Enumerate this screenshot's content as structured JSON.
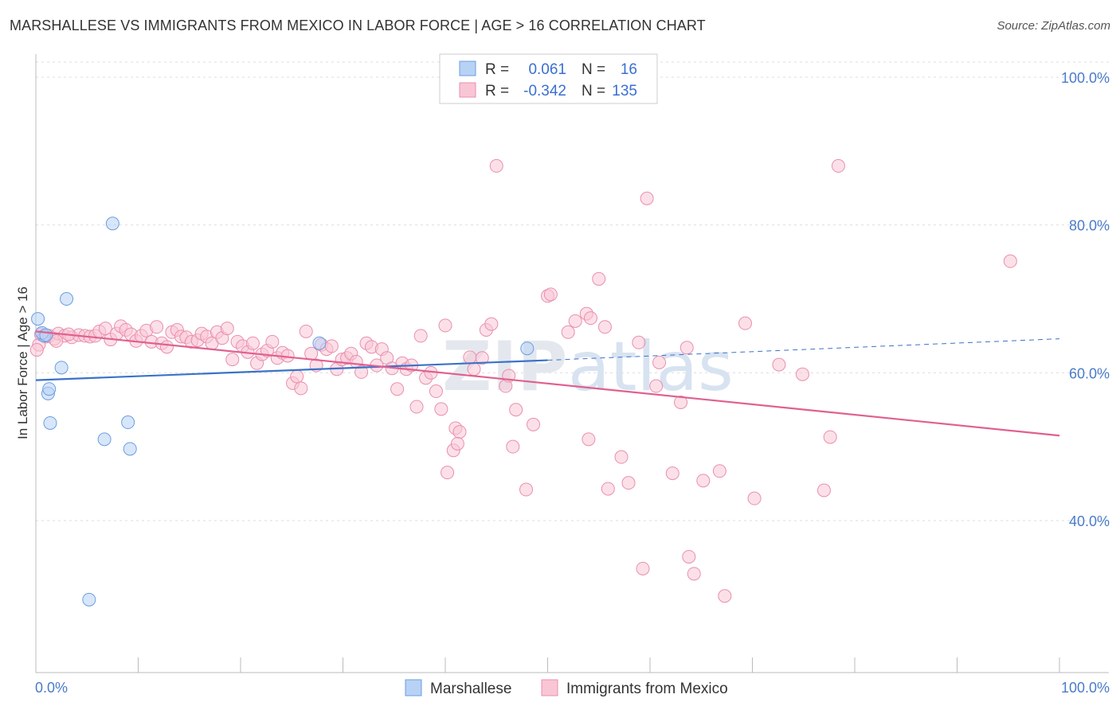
{
  "title": "MARSHALLESE VS IMMIGRANTS FROM MEXICO IN LABOR FORCE | AGE > 16 CORRELATION CHART",
  "source": "Source: ZipAtlas.com",
  "watermark": "ZIPatlas",
  "chart_data": {
    "type": "scatter",
    "ylabel": "In Labor Force | Age > 16",
    "xlim": [
      0,
      100
    ],
    "ylim": [
      20,
      100
    ],
    "x_ticks": [
      "0.0%",
      "100.0%"
    ],
    "y_ticks": [
      {
        "value": 100,
        "label": "100.0%"
      },
      {
        "value": 80,
        "label": "80.0%"
      },
      {
        "value": 60,
        "label": "60.0%"
      },
      {
        "value": 40,
        "label": "40.0%"
      }
    ],
    "grid": true,
    "legend_placement": "top-center",
    "legend": [
      {
        "r_label": "R =",
        "r": "0.061",
        "n_label": "N =",
        "n": "16",
        "color": "#b8d2f5",
        "stroke": "#6a9ee0"
      },
      {
        "r_label": "R =",
        "r": "-0.342",
        "n_label": "N =",
        "n": "135",
        "color": "#f9c6d6",
        "stroke": "#e98fae"
      }
    ],
    "series": [
      {
        "name": "Marshallese",
        "color": "#b8d2f5",
        "stroke": "#6a9ee0",
        "line_color": "#3a72c8",
        "trend": {
          "x0": 0,
          "y0": 59.0,
          "x1": 50,
          "y1": 61.7,
          "dash_to_x": 100,
          "dash_to_y": 64.6
        },
        "points": [
          [
            0.2,
            67.3
          ],
          [
            0.8,
            65.0
          ],
          [
            1.2,
            57.2
          ],
          [
            1.3,
            57.8
          ],
          [
            1.4,
            53.2
          ],
          [
            2.5,
            60.7
          ],
          [
            3.0,
            70.0
          ],
          [
            6.7,
            51.0
          ],
          [
            7.5,
            80.2
          ],
          [
            9.0,
            53.3
          ],
          [
            9.2,
            49.7
          ],
          [
            5.2,
            29.3
          ],
          [
            27.7,
            64.0
          ],
          [
            48.0,
            63.3
          ],
          [
            0.6,
            65.4
          ],
          [
            1.0,
            65.1
          ]
        ]
      },
      {
        "name": "Immigrants from Mexico",
        "color": "#f9c6d6",
        "stroke": "#e98fae",
        "line_color": "#e0608f",
        "trend": {
          "x0": 0,
          "y0": 65.6,
          "x1": 100,
          "y1": 51.5
        },
        "points": [
          [
            0.3,
            63.8
          ],
          [
            0.5,
            65.2
          ],
          [
            1.0,
            64.9
          ],
          [
            1.3,
            65.0
          ],
          [
            1.8,
            64.6
          ],
          [
            2.2,
            65.3
          ],
          [
            2.8,
            65.0
          ],
          [
            3.5,
            64.8
          ],
          [
            4.2,
            65.1
          ],
          [
            4.8,
            65.0
          ],
          [
            5.3,
            64.9
          ],
          [
            5.8,
            65.0
          ],
          [
            6.2,
            65.6
          ],
          [
            6.8,
            66.0
          ],
          [
            7.3,
            64.5
          ],
          [
            7.9,
            65.3
          ],
          [
            8.3,
            66.3
          ],
          [
            8.8,
            65.8
          ],
          [
            9.3,
            65.2
          ],
          [
            9.8,
            64.3
          ],
          [
            10.3,
            65.0
          ],
          [
            10.8,
            65.7
          ],
          [
            11.3,
            64.2
          ],
          [
            11.8,
            66.2
          ],
          [
            12.3,
            64.0
          ],
          [
            12.8,
            63.5
          ],
          [
            13.3,
            65.5
          ],
          [
            13.8,
            65.8
          ],
          [
            14.2,
            64.9
          ],
          [
            14.7,
            64.8
          ],
          [
            15.2,
            64.2
          ],
          [
            15.8,
            64.4
          ],
          [
            16.2,
            65.3
          ],
          [
            16.7,
            64.9
          ],
          [
            17.2,
            64.0
          ],
          [
            17.7,
            65.5
          ],
          [
            18.2,
            64.7
          ],
          [
            18.7,
            66.0
          ],
          [
            19.2,
            61.8
          ],
          [
            19.7,
            64.2
          ],
          [
            20.2,
            63.6
          ],
          [
            20.7,
            62.8
          ],
          [
            21.2,
            64.0
          ],
          [
            21.6,
            61.3
          ],
          [
            22.1,
            62.5
          ],
          [
            22.6,
            63.0
          ],
          [
            23.1,
            64.2
          ],
          [
            23.6,
            62.0
          ],
          [
            24.1,
            62.7
          ],
          [
            24.6,
            62.3
          ],
          [
            25.1,
            58.6
          ],
          [
            25.5,
            59.5
          ],
          [
            25.9,
            57.9
          ],
          [
            26.4,
            65.6
          ],
          [
            26.9,
            62.6
          ],
          [
            27.4,
            61.0
          ],
          [
            27.9,
            63.8
          ],
          [
            28.4,
            63.2
          ],
          [
            28.9,
            63.6
          ],
          [
            29.4,
            60.5
          ],
          [
            29.9,
            61.8
          ],
          [
            30.4,
            62.0
          ],
          [
            30.8,
            62.6
          ],
          [
            31.3,
            61.5
          ],
          [
            31.8,
            60.1
          ],
          [
            32.3,
            64.0
          ],
          [
            32.8,
            63.5
          ],
          [
            33.3,
            61.0
          ],
          [
            33.8,
            63.2
          ],
          [
            34.3,
            62.0
          ],
          [
            34.8,
            60.6
          ],
          [
            35.3,
            57.8
          ],
          [
            35.8,
            61.3
          ],
          [
            36.2,
            60.5
          ],
          [
            36.7,
            61.0
          ],
          [
            37.2,
            55.4
          ],
          [
            37.6,
            65.0
          ],
          [
            38.1,
            59.3
          ],
          [
            38.6,
            60.0
          ],
          [
            39.1,
            57.5
          ],
          [
            39.6,
            55.1
          ],
          [
            40.0,
            66.4
          ],
          [
            41.0,
            52.5
          ],
          [
            41.4,
            52.0
          ],
          [
            40.2,
            46.5
          ],
          [
            40.8,
            49.5
          ],
          [
            41.2,
            50.4
          ],
          [
            42.4,
            62.1
          ],
          [
            42.8,
            60.5
          ],
          [
            43.6,
            62.0
          ],
          [
            44.0,
            65.8
          ],
          [
            44.5,
            66.6
          ],
          [
            45.0,
            88.0
          ],
          [
            45.9,
            58.2
          ],
          [
            46.2,
            59.6
          ],
          [
            46.9,
            55.0
          ],
          [
            46.6,
            50.0
          ],
          [
            47.9,
            44.2
          ],
          [
            48.6,
            53.0
          ],
          [
            50.0,
            70.4
          ],
          [
            50.3,
            70.6
          ],
          [
            52.0,
            65.5
          ],
          [
            52.7,
            67.0
          ],
          [
            53.8,
            68.0
          ],
          [
            54.2,
            67.4
          ],
          [
            54.0,
            51.0
          ],
          [
            55.0,
            72.7
          ],
          [
            55.6,
            66.2
          ],
          [
            55.9,
            44.3
          ],
          [
            57.2,
            48.6
          ],
          [
            57.9,
            45.1
          ],
          [
            58.9,
            64.1
          ],
          [
            59.3,
            33.5
          ],
          [
            59.7,
            83.6
          ],
          [
            60.6,
            58.2
          ],
          [
            60.9,
            61.4
          ],
          [
            62.2,
            46.4
          ],
          [
            63.0,
            56.0
          ],
          [
            63.6,
            63.4
          ],
          [
            63.8,
            35.1
          ],
          [
            64.3,
            32.8
          ],
          [
            65.2,
            45.4
          ],
          [
            66.8,
            46.7
          ],
          [
            67.3,
            29.8
          ],
          [
            70.2,
            43.0
          ],
          [
            69.3,
            66.7
          ],
          [
            72.6,
            61.1
          ],
          [
            74.9,
            59.8
          ],
          [
            77.0,
            44.1
          ],
          [
            77.6,
            51.3
          ],
          [
            78.4,
            88.0
          ],
          [
            95.2,
            75.1
          ],
          [
            0.1,
            63.1
          ],
          [
            2.0,
            64.3
          ],
          [
            3.2,
            65.2
          ]
        ]
      }
    ]
  },
  "bottom_legend": [
    {
      "label": "Marshallese",
      "color": "#b8d2f5",
      "stroke": "#6a9ee0"
    },
    {
      "label": "Immigrants from Mexico",
      "color": "#f9c6d6",
      "stroke": "#e98fae"
    }
  ]
}
